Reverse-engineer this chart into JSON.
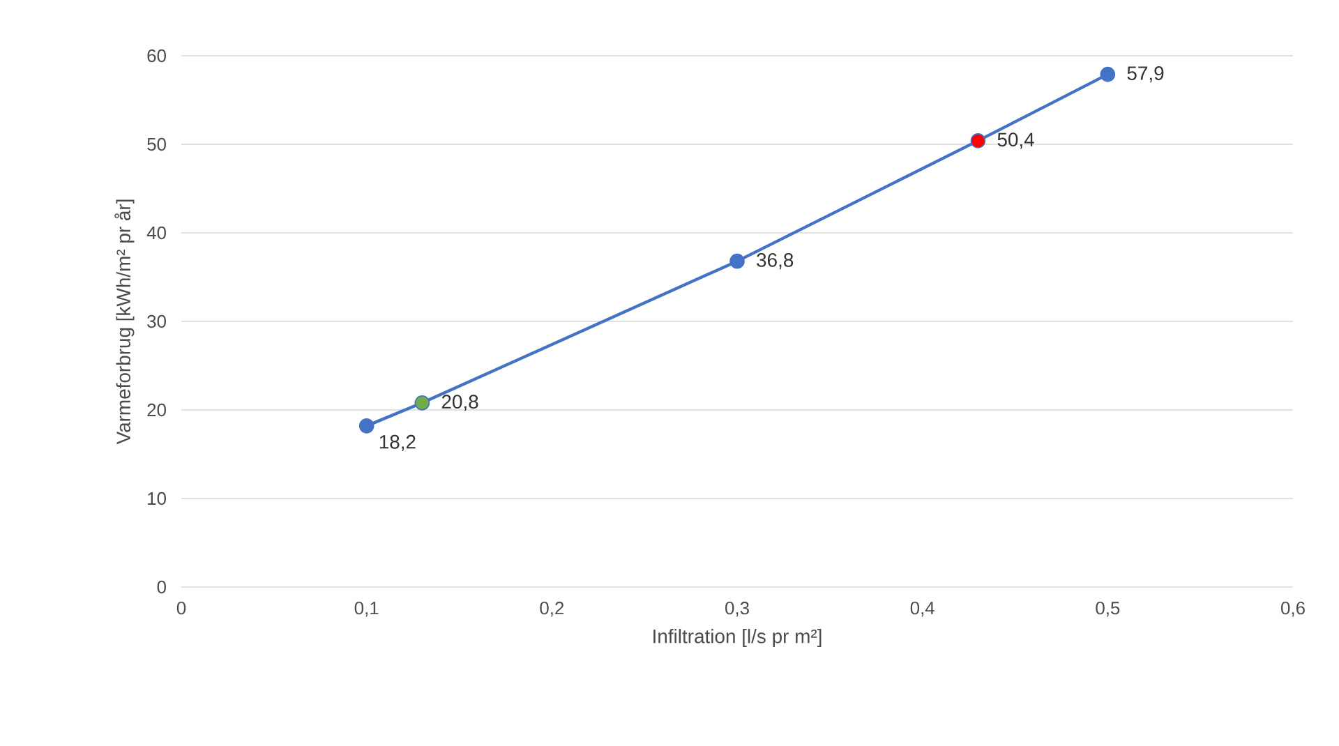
{
  "chart_data": {
    "type": "line",
    "xlabel": "Infiltration [l/s pr m²]",
    "ylabel": "Varmeforbrug [kWh/m² pr år]",
    "x": [
      0.1,
      0.13,
      0.3,
      0.43,
      0.5
    ],
    "series": [
      {
        "color": "#4472c4",
        "colors": [
          "#4472c4",
          "#70ad47",
          "#4472c4",
          "#ff0000",
          "#4472c4"
        ],
        "values": [
          18.2,
          20.8,
          36.8,
          50.4,
          57.9
        ],
        "value_labels": [
          "18,2",
          "20,8",
          "36,8",
          "50,4",
          "57,9"
        ]
      }
    ],
    "xlim": [
      0,
      0.6
    ],
    "xticks": [
      0,
      {
        "value": 0.1,
        "label": "0,1"
      },
      {
        "value": 0.2,
        "label": "0,2"
      },
      {
        "value": 0.3,
        "label": "0,3"
      },
      {
        "value": 0.4,
        "label": "0,4"
      },
      {
        "value": 0.5,
        "label": "0,5"
      },
      {
        "value": 0.6,
        "label": "0,6"
      }
    ],
    "ylim": [
      0,
      60
    ],
    "yticks": [
      0,
      10,
      20,
      30,
      40,
      50,
      60
    ],
    "grid": "y",
    "marker": "circle",
    "line_style": "solid"
  }
}
